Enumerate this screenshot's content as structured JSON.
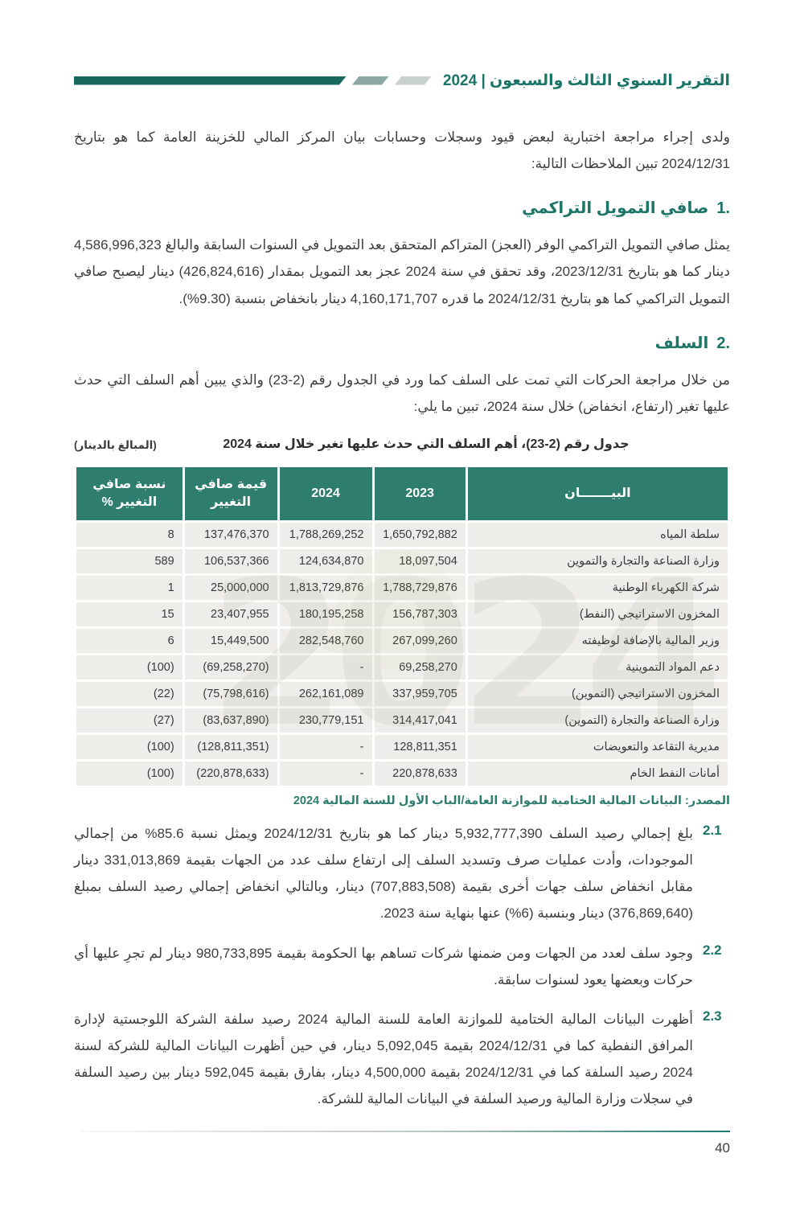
{
  "colors": {
    "teal_dark": "#17695f",
    "teal_heading": "#1d7568",
    "table_header_bg": "#2e7d6e",
    "row_bg": "#efedea",
    "seg_mid": "#8ca8a2",
    "seg_light": "#c7d1ce"
  },
  "header": {
    "title": "التقرير السنوي الثالث والسبعون | 2024"
  },
  "intro": "ولدى إجراء مراجعة اختبارية لبعض قيود وسجلات وحسابات بيان المركز المالي للخزينة العامة كما هو بتاريخ 2024/12/31 تبين الملاحظات التالية:",
  "section1": {
    "num": "1.",
    "title": "صافي التمويل التراكمي",
    "body": "يمثل صافي التمويل التراكمي الوفر (العجز) المتراكم المتحقق بعد التمويل في السنوات السابقة والبالغ 4,586,996,323 دينار كما هو بتاريخ 2023/12/31، وقد تحقق في سنة 2024 عجز بعد التمويل بمقدار (426,824,616) دينار ليصبح صافي التمويل التراكمي كما هو بتاريخ 2024/12/31 ما قدره 4,160,171,707 دينار بانخفاض بنسبة (9.30%)."
  },
  "section2": {
    "num": "2.",
    "title": "السلف",
    "body": "من خلال مراجعة الحركات التي تمت على السلف كما ورد في الجدول رقم (2-23) والذي يبين أهم السلف التي حدث عليها تغير (ارتفاع، انخفاض) خلال سنة 2024، تبين ما يلي:"
  },
  "table": {
    "caption": "جدول رقم (2-23)، أهم السلف التي حدث عليها تغير خلال سنة 2024",
    "amounts_note": "(المبالغ بالدينار)",
    "columns": [
      "البيـــــــان",
      "2023",
      "2024",
      "قيمة صافي التغيير",
      "نسبة صافي التغيير %"
    ],
    "rows": [
      {
        "name": "سلطة المياه",
        "y2023": "1,650,792,882",
        "y2024": "1,788,269,252",
        "change": "137,476,370",
        "pct": "8"
      },
      {
        "name": "وزارة الصناعة والتجارة والتموين",
        "y2023": "18,097,504",
        "y2024": "124,634,870",
        "change": "106,537,366",
        "pct": "589"
      },
      {
        "name": "شركة الكهرباء الوطنية",
        "y2023": "1,788,729,876",
        "y2024": "1,813,729,876",
        "change": "25,000,000",
        "pct": "1"
      },
      {
        "name": "المخزون الاستراتيجي (النفط)",
        "y2023": "156,787,303",
        "y2024": "180,195,258",
        "change": "23,407,955",
        "pct": "15"
      },
      {
        "name": "وزير المالية بالإضافة لوظيفته",
        "y2023": "267,099,260",
        "y2024": "282,548,760",
        "change": "15,449,500",
        "pct": "6"
      },
      {
        "name": "دعم المواد التموينية",
        "y2023": "69,258,270",
        "y2024": "-",
        "change": "(69,258,270)",
        "pct": "(100)"
      },
      {
        "name": "المخزون الاستراتيجي (التموين)",
        "y2023": "337,959,705",
        "y2024": "262,161,089",
        "change": "(75,798,616)",
        "pct": "(22)"
      },
      {
        "name": "وزارة الصناعة والتجارة (التموين)",
        "y2023": "314,417,041",
        "y2024": "230,779,151",
        "change": "(83,637,890)",
        "pct": "(27)"
      },
      {
        "name": "مديرية التقاعد والتعويضات",
        "y2023": "128,811,351",
        "y2024": "-",
        "change": "(128,811,351)",
        "pct": "(100)"
      },
      {
        "name": "أمانات النفط الخام",
        "y2023": "220,878,633",
        "y2024": "-",
        "change": "(220,878,633)",
        "pct": "(100)"
      }
    ],
    "source": "المصدر: البيانات المالية الختامية للموازنة العامة/الباب الأول للسنة المالية 2024"
  },
  "findings": [
    {
      "num": "2.1",
      "text": "بلغ إجمالي رصيد السلف 5,932,777,390 دينار كما هو بتاريخ 2024/12/31 ويمثل نسبة 85.6% من إجمالي الموجودات، وأدت عمليات صرف وتسديد السلف إلى ارتفاع سلف عدد من الجهات بقيمة 331,013,869 دينار مقابل انخفاض سلف جهات أخرى بقيمة (707,883,508) دينار، وبالتالي انخفاض إجمالي رصيد السلف بمبلغ (376,869,640) دينار وبنسبة (6%) عنها بنهاية سنة 2023."
    },
    {
      "num": "2.2",
      "text": "وجود سلف لعدد من الجهات ومن ضمنها شركات تساهم بها الحكومة بقيمة 980,733,895 دينار لم تجرِ عليها أي حركات وبعضها يعود لسنوات سابقة."
    },
    {
      "num": "2.3",
      "text": "أظهرت البيانات المالية الختامية للموازنة العامة للسنة المالية 2024 رصيد سلفة الشركة اللوجستية لإدارة المرافق النفطية كما في 2024/12/31 بقيمة 5,092,045 دينار، في حين أظهرت البيانات المالية للشركة لسنة 2024 رصيد السلفة كما في 2024/12/31 بقيمة 4,500,000 دينار، بفارق بقيمة 592,045 دينار بين رصيد السلفة في سجلات وزارة المالية ورصيد السلفة في البيانات المالية للشركة."
    }
  ],
  "watermark": "2024",
  "footer": {
    "page_number": "40"
  }
}
